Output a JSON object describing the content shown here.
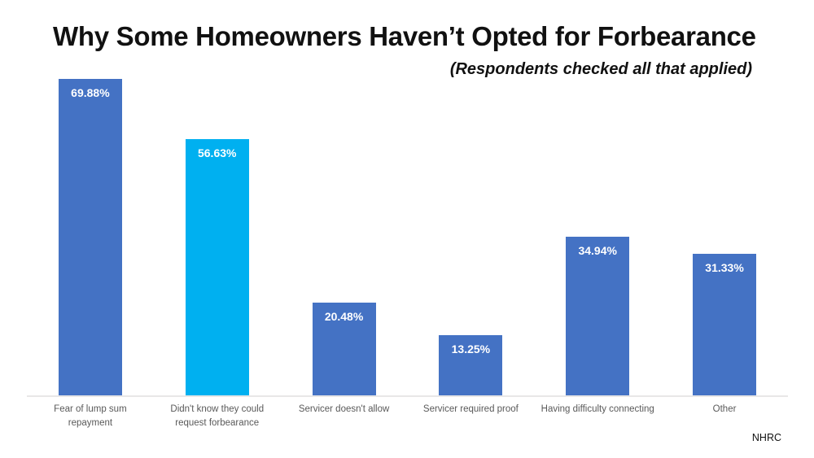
{
  "title": "Why Some Homeowners Haven’t Opted for Forbearance",
  "subtitle": "(Respondents checked all that applied)",
  "source": "NHRC",
  "colors": {
    "bar_default": "#4472C4",
    "bar_highlight": "#00B0F0",
    "value_label_text": "#FFFFFF",
    "category_text": "#595959",
    "axis_line": "#E8E7E7",
    "title_text": "#111111",
    "background": "#FFFFFF"
  },
  "chart_data": {
    "type": "bar",
    "title": "Why Some Homeowners Haven’t Opted for Forbearance",
    "subtitle": "(Respondents checked all that applied)",
    "categories": [
      "Fear of lump sum repayment",
      "Didn't know they could request forbearance",
      "Servicer doesn't allow",
      "Servicer required proof",
      "Having difficulty connecting",
      "Other"
    ],
    "values": [
      69.88,
      56.63,
      20.48,
      13.25,
      34.94,
      31.33
    ],
    "value_labels": [
      "69.88%",
      "56.63%",
      "20.48%",
      "13.25%",
      "34.94%",
      "31.33%"
    ],
    "highlight_index": 1,
    "xlabel": "",
    "ylabel": "",
    "ylim": [
      0,
      70
    ],
    "grid": false,
    "legend": false,
    "value_labels_position": "inside-top",
    "source": "NHRC"
  }
}
